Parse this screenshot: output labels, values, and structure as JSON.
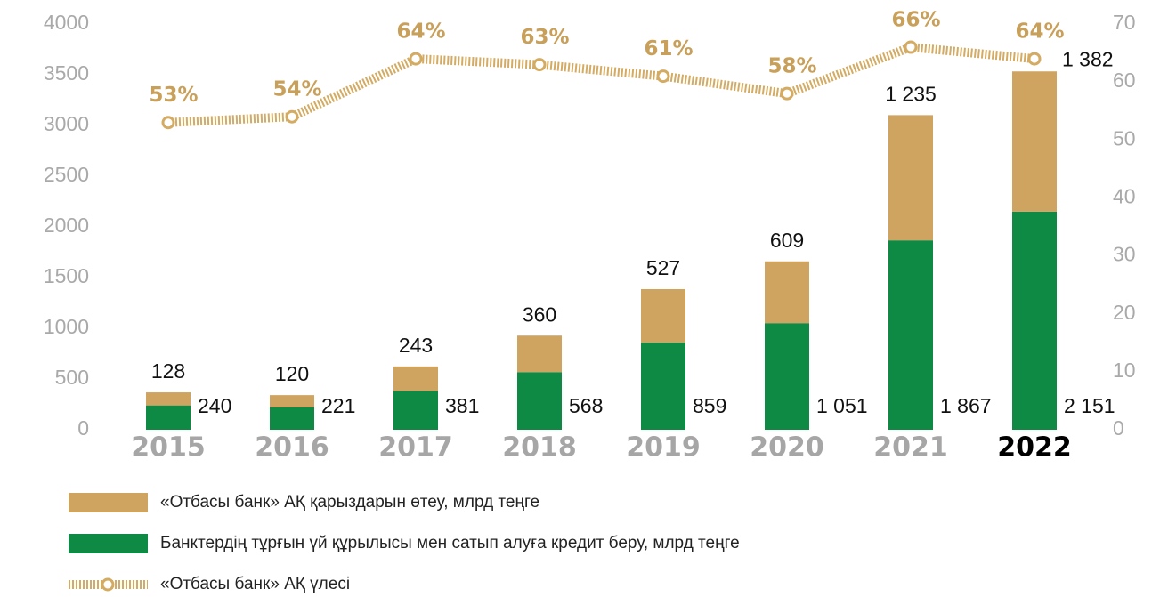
{
  "chart_data": {
    "type": "stacked-bar-line",
    "categories": [
      "2015",
      "2016",
      "2017",
      "2018",
      "2019",
      "2020",
      "2021",
      "2022"
    ],
    "highlight_last": true,
    "series": [
      {
        "name": "Банктердің тұрғын үй құрылысы мен сатып алуға кредит беру, млрд теңге",
        "color": "#0f8a45",
        "values": [
          240,
          221,
          381,
          568,
          859,
          1051,
          1867,
          2151
        ],
        "value_labels": [
          "240",
          "221",
          "381",
          "568",
          "859",
          "1 051",
          "1 867",
          "2 151"
        ]
      },
      {
        "name": "«Отбасы банк» АҚ қарыздарын өтеу, млрд теңге",
        "color": "#cfa461",
        "values": [
          128,
          120,
          243,
          360,
          527,
          609,
          1235,
          1382
        ],
        "value_labels": [
          "128",
          "120",
          "243",
          "360",
          "527",
          "609",
          "1 235",
          "1 382"
        ]
      },
      {
        "name": "«Отбасы банк» АҚ үлесі",
        "color": "#d4ab62",
        "axis": "y2",
        "kind": "line",
        "values": [
          53,
          54,
          64,
          63,
          61,
          58,
          66,
          64
        ],
        "value_labels": [
          "53%",
          "54%",
          "64%",
          "63%",
          "61%",
          "58%",
          "66%",
          "64%"
        ]
      }
    ],
    "legend_order": [
      1,
      0,
      2
    ],
    "ylim": [
      0,
      4000
    ],
    "yticks": [
      0,
      500,
      1000,
      1500,
      2000,
      2500,
      3000,
      3500,
      4000
    ],
    "y2lim": [
      0,
      70
    ],
    "y2ticks": [
      0,
      10,
      20,
      30,
      40,
      50,
      60,
      70
    ]
  }
}
